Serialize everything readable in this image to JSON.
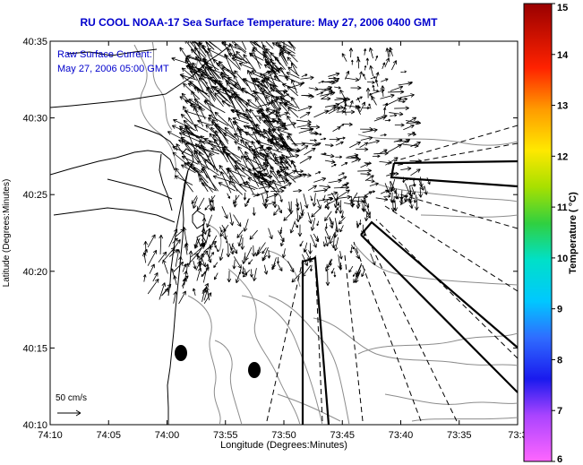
{
  "title": "RU COOL  NOAA-17  Sea Surface Temperature:  May 27, 2006 0400 GMT",
  "overlay": {
    "line1": "Raw Surface Current:",
    "line2": "May 27, 2006 05:00 GMT"
  },
  "scale_label": "50 cm/s",
  "axes": {
    "xlabel": "Longitude (Degrees:Minutes)",
    "ylabel": "Latitude (Degrees:Minutes)",
    "xticks": [
      "74:10",
      "74:05",
      "74:00",
      "73:55",
      "73:50",
      "73:45",
      "73:40",
      "73:35",
      "73:3"
    ],
    "yticks": [
      "40:35",
      "40:30",
      "40:25",
      "40:20",
      "40:15",
      "40:10"
    ]
  },
  "colorbar": {
    "label": "Temperature ( °C)",
    "ticks": [
      "15",
      "14",
      "13",
      "12",
      "11",
      "10",
      "9",
      "8",
      "7",
      "6"
    ],
    "min": 6,
    "max": 15
  }
}
